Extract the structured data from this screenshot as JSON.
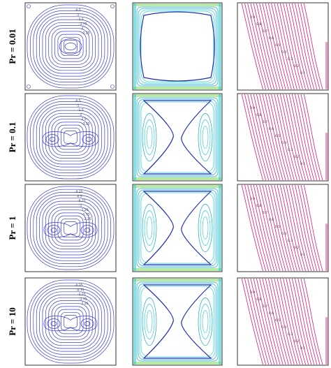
{
  "rows": [
    {
      "label": "Pr = 0.01",
      "stream_levels": [
        "-0.5",
        "-1",
        "-1.5",
        "-1.75",
        "-2",
        "-2.25"
      ],
      "temp_levels": [
        "0.9",
        "0.8",
        "0.7",
        "0.6",
        "0.5",
        "0.4",
        "0.3",
        "0.2",
        "0.1"
      ]
    },
    {
      "label": "Pr = 0.1",
      "stream_levels": [
        "-0.5",
        "-1",
        "-1.5",
        "-2",
        "-2.5",
        "-3.25"
      ],
      "temp_levels": [
        "0.9",
        "0.8",
        "0.7",
        "0.6",
        "0.5",
        "0.4",
        "0.3",
        "0.2",
        "0.1"
      ]
    },
    {
      "label": "Pr = 1",
      "stream_levels": [
        "-0.25",
        "-0.5",
        "-0.75",
        "-1",
        "-1.25",
        "-1.75",
        "-2.25"
      ],
      "temp_levels": [
        "0.9",
        "0.8",
        "0.7",
        "0.6",
        "0.5",
        "0.4",
        "0.3",
        "0.2",
        "0.1"
      ]
    },
    {
      "label": "Pr = 10",
      "stream_levels": [
        "-0.25",
        "-0.75",
        "-1.25",
        "-1.75",
        "-2.25"
      ],
      "temp_levels": [
        "0.9",
        "0.8",
        "0.7",
        "0.6",
        "0.5",
        "0.4",
        "0.3",
        "0.2",
        "0.1"
      ]
    }
  ],
  "colors": {
    "streamlines": "#3b3fd6",
    "vorticity_dark": "#1f2fb0",
    "vorticity_mid": "#1aa3c8",
    "vorticity_light": "#35d0d0",
    "vorticity_wall": "#7ed957",
    "isotherms": "#e0197a",
    "frame": "#333333"
  }
}
